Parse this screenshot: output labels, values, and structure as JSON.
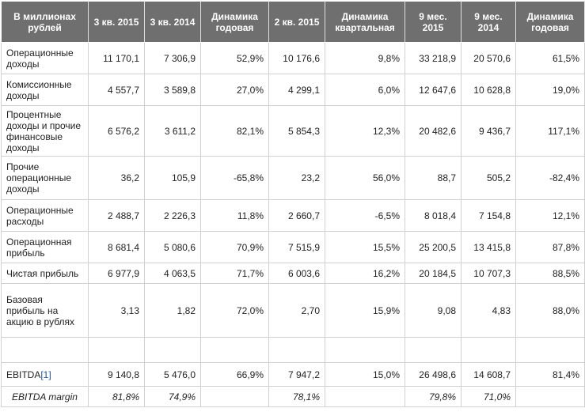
{
  "headers": [
    "В миллионах рублей",
    "3 кв. 2015",
    "3 кв. 2014",
    "Динамика годовая",
    "2 кв. 2015",
    "Динамика квартальная",
    "9 мес. 2015",
    "9 мес. 2014",
    "Динамика годовая"
  ],
  "rows": [
    {
      "label": "Операционные доходы",
      "cells": [
        "11 170,1",
        "7 306,9",
        "52,9%",
        "10 176,6",
        "9,8%",
        "33 218,9",
        "20 570,6",
        "61,5%"
      ]
    },
    {
      "label": "Комиссионные доходы",
      "cells": [
        "4 557,7",
        "3 589,8",
        "27,0%",
        "4 299,1",
        "6,0%",
        "12 647,6",
        "10 628,8",
        "19,0%"
      ]
    },
    {
      "label": "Процентные доходы и прочие финансовые доходы",
      "cells": [
        "6 576,2",
        "3 611,2",
        "82,1%",
        "5 854,3",
        "12,3%",
        "20 482,6",
        "9 436,7",
        "117,1%"
      ]
    },
    {
      "label": "Прочие операционные доходы",
      "cells": [
        "36,2",
        "105,9",
        "-65,8%",
        "23,2",
        "56,0%",
        "88,7",
        "505,2",
        "-82,4%"
      ]
    },
    {
      "label": "Операционные расходы",
      "cells": [
        "2 488,7",
        "2 226,3",
        "11,8%",
        "2 660,7",
        "-6,5%",
        "8 018,4",
        "7 154,8",
        "12,1%"
      ]
    },
    {
      "label": "Операционная прибыль",
      "cells": [
        "8 681,4",
        "5 080,6",
        "70,9%",
        "7 515,9",
        "15,5%",
        "25 200,5",
        "13 415,8",
        "87,8%"
      ]
    },
    {
      "label": "Чистая прибыль",
      "cells": [
        "6 977,9",
        "4 063,5",
        "71,7%",
        "6 003,6",
        "16,2%",
        "20 184,5",
        "10 707,3",
        "88,5%"
      ]
    },
    {
      "label": "Базовая прибыль на акцию в рублях",
      "cells": [
        "3,13",
        "1,82",
        "72,0%",
        "2,70",
        "15,9%",
        "9,08",
        "4,83",
        "88,0%"
      ]
    },
    {
      "label": "",
      "cells": [
        "",
        "",
        "",
        "",
        "",
        "",
        "",
        ""
      ]
    }
  ],
  "ebitda": {
    "label": "EBITDA",
    "footnote": "[1]",
    "cells": [
      "9 140,8",
      "5 476,0",
      "66,9%",
      "7 947,2",
      "15,0%",
      "26 498,6",
      "14 608,7",
      "81,4%"
    ]
  },
  "ebitda_margin": {
    "label": "EBITDA margin",
    "cells": [
      "81,8%",
      "74,9%",
      "",
      "78,1%",
      "",
      "79,8%",
      "71,0%",
      ""
    ]
  }
}
